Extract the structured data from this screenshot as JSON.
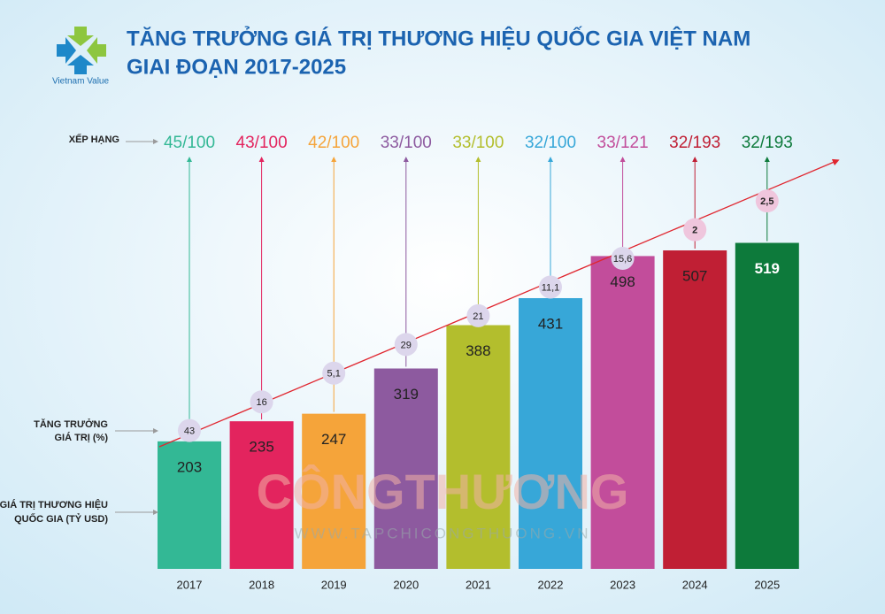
{
  "logo_text": "Vietnam Value",
  "chart_data": {
    "type": "bar",
    "title_lines": [
      "TĂNG TRƯỞNG GIÁ TRỊ THƯƠNG HIỆU QUỐC GIA VIỆT NAM",
      "GIAI ĐOẠN 2017-2025"
    ],
    "categories": [
      "2017",
      "2018",
      "2019",
      "2020",
      "2021",
      "2022",
      "2023",
      "2024",
      "2025"
    ],
    "value_caption": [
      "GIÁ TRỊ THƯƠNG HIỆU",
      "QUỐC GIA (TỶ USD)"
    ],
    "values": [
      203,
      235,
      247,
      319,
      388,
      431,
      498,
      507,
      519
    ],
    "colors": [
      "#33b895",
      "#e3245e",
      "#f5a43a",
      "#8d5a9f",
      "#b3be2d",
      "#37a7d8",
      "#c24d9b",
      "#c01f34",
      "#0d7a3b"
    ],
    "growth": {
      "caption": [
        "TĂNG TRƯỞNG",
        "GIÁ TRỊ (%)"
      ],
      "values": [
        43,
        16,
        5.1,
        29,
        21,
        11.1,
        15.6,
        2,
        2.5
      ],
      "value_labels": [
        "43",
        "16",
        "5,1",
        "29",
        "21",
        "11,1",
        "15,6",
        "2",
        "2,5"
      ],
      "color": "#e0262f"
    },
    "ranking": {
      "caption": "XẾP HẠNG",
      "values": [
        "45/100",
        "43/100",
        "42/100",
        "33/100",
        "33/100",
        "32/100",
        "33/121",
        "32/193",
        "32/193"
      ]
    },
    "watermark": [
      "CÔNGTHƯƠNG",
      "WWW.TAPCHICONGTHUONG.VN"
    ]
  }
}
